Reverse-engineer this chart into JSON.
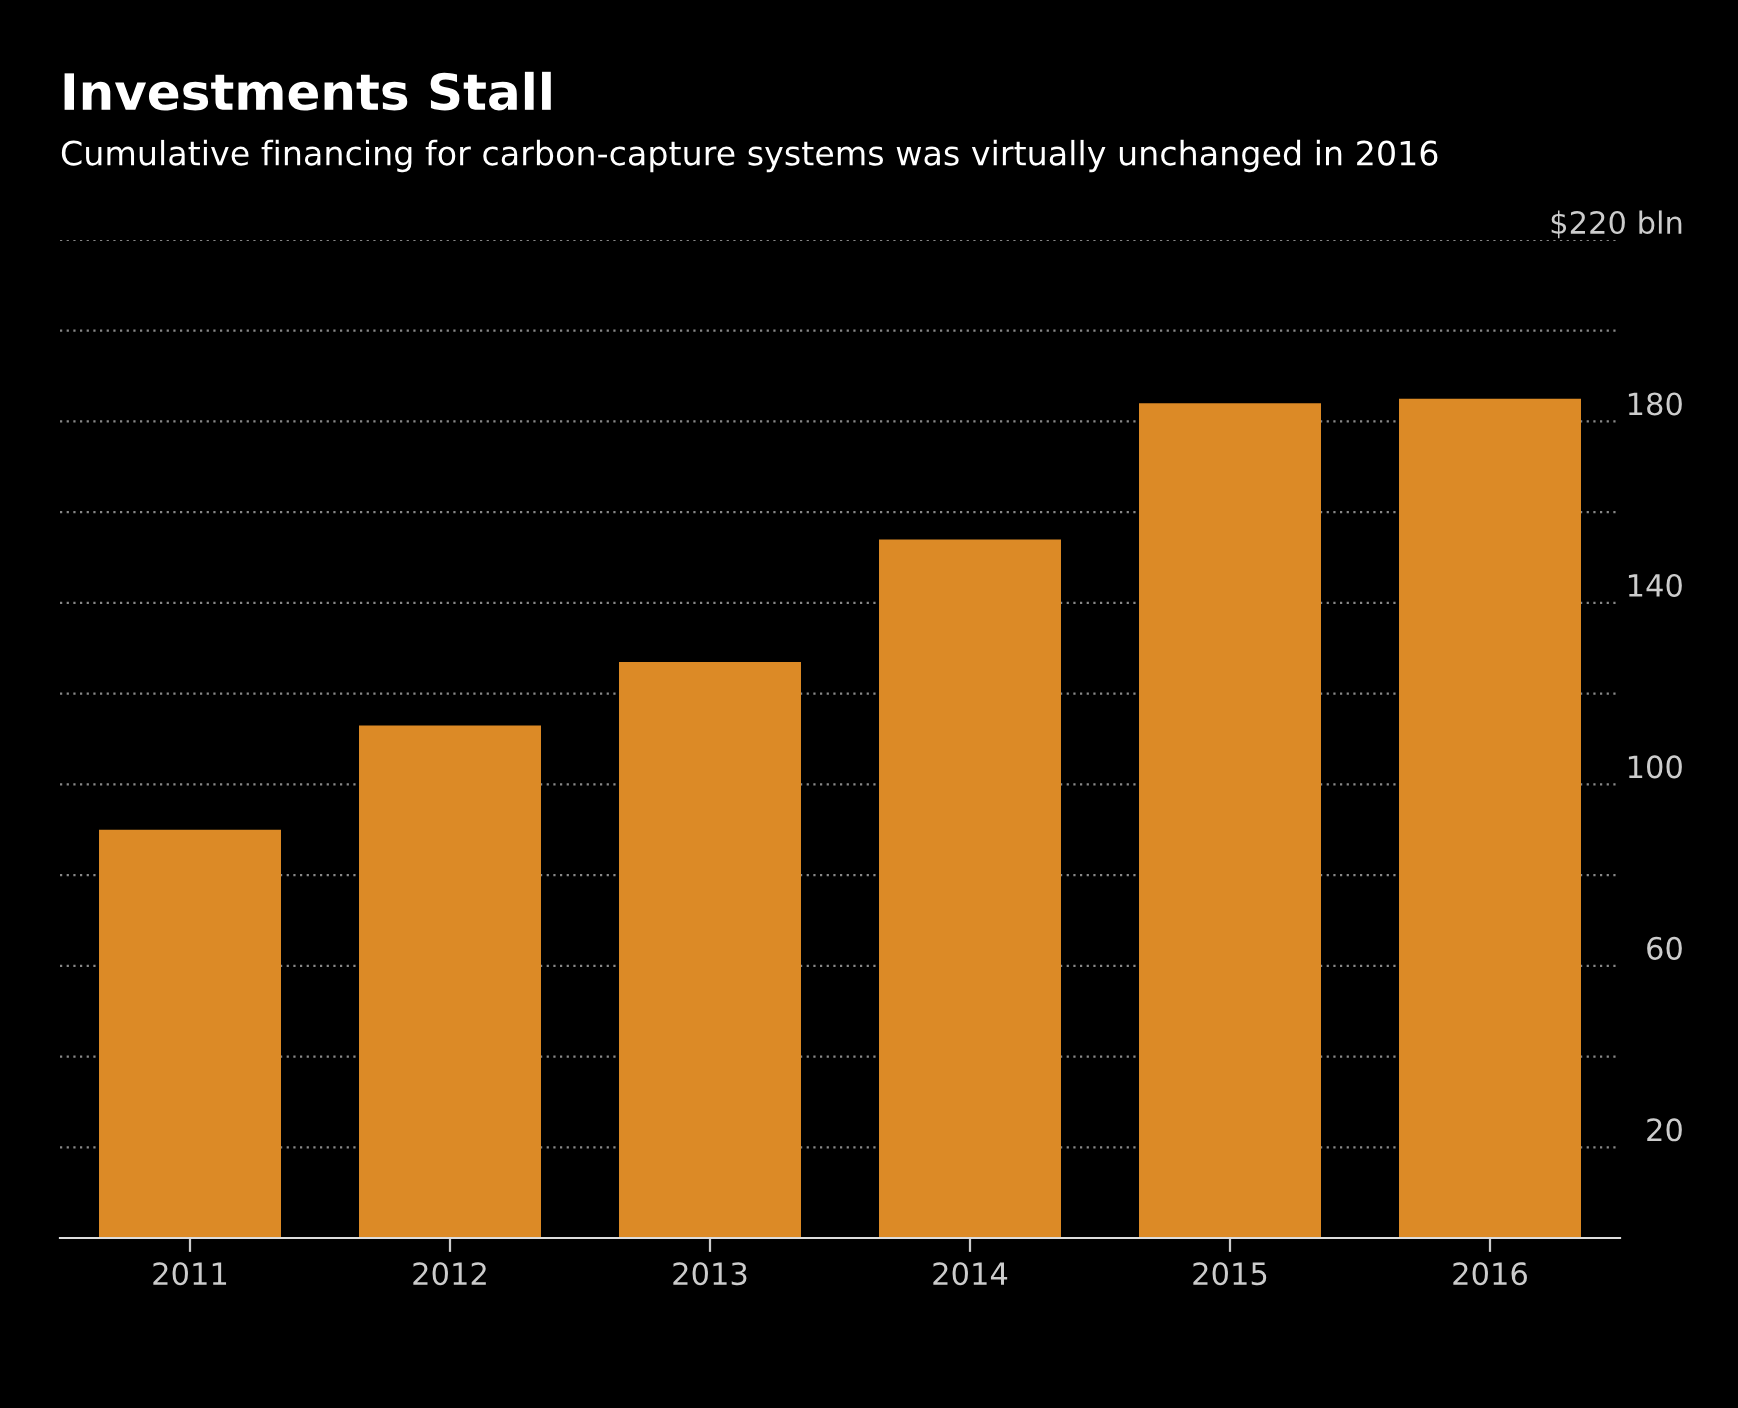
{
  "chart_data": {
    "type": "bar",
    "title": "Investments Stall",
    "subtitle": "Cumulative financing for carbon-capture systems was virtually unchanged in 2016",
    "categories": [
      "2011",
      "2012",
      "2013",
      "2014",
      "2015",
      "2016"
    ],
    "values": [
      90,
      113,
      127,
      154,
      184,
      185
    ],
    "color": "#dc8a26",
    "ylim": [
      0,
      220
    ],
    "yticks": [
      {
        "value": 20,
        "label": "20"
      },
      {
        "value": 40,
        "label": null
      },
      {
        "value": 60,
        "label": "60"
      },
      {
        "value": 80,
        "label": null
      },
      {
        "value": 100,
        "label": "100"
      },
      {
        "value": 120,
        "label": null
      },
      {
        "value": 140,
        "label": "140"
      },
      {
        "value": 160,
        "label": null
      },
      {
        "value": 180,
        "label": "180"
      },
      {
        "value": 200,
        "label": null
      },
      {
        "value": 220,
        "label": "$220 bln"
      }
    ],
    "grid": "y"
  }
}
